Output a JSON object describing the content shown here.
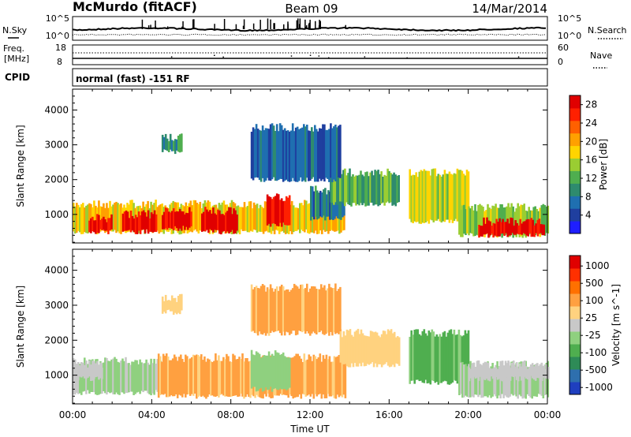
{
  "header": {
    "station": "McMurdo (fitACF)",
    "beam": "Beam 09",
    "date": "14/Mar/2014"
  },
  "labels": {
    "nsky": "N.Sky",
    "nsearch": "N.Search",
    "freq_line1": "Freq.",
    "freq_line2": "[MHz]",
    "nave": "Nave",
    "cpid": "CPID",
    "cpid_value": "normal (fast) -151 RF",
    "noise_ticks_left": [
      "10^5",
      "10^0"
    ],
    "noise_ticks_right": [
      "10^5",
      "10^0"
    ],
    "freq_ticks": [
      "18",
      "8"
    ],
    "nave_ticks": [
      "60",
      "0"
    ]
  },
  "chart_data": [
    {
      "type": "heatmap",
      "title": "",
      "xlabel": "Time UT",
      "ylabel": "Slant Range [km]",
      "x_ticks": [
        "00:00",
        "04:00",
        "08:00",
        "12:00",
        "16:00",
        "20:00",
        "00:00"
      ],
      "xlim": [
        0,
        24
      ],
      "y_ticks": [
        1000,
        2000,
        3000,
        4000
      ],
      "ylim": [
        180,
        4600
      ],
      "colorbar": {
        "label": "Power [dB]",
        "ticks": [
          4,
          8,
          12,
          16,
          20,
          24,
          28
        ],
        "range": [
          0,
          30
        ],
        "colors": [
          "#1e1eff",
          "#1f3f9f",
          "#1f6fb0",
          "#2e8b6e",
          "#4fae4f",
          "#9acd32",
          "#ffd400",
          "#ffa000",
          "#ff6000",
          "#ff2000",
          "#e00000"
        ]
      },
      "bands": [
        {
          "from": 0.0,
          "to": 13.7,
          "range_lo": 500,
          "range_hi": 1300,
          "level": 18
        },
        {
          "from": 0.8,
          "to": 2.0,
          "range_lo": 500,
          "range_hi": 900,
          "level": 28
        },
        {
          "from": 2.5,
          "to": 4.2,
          "range_lo": 500,
          "range_hi": 1000,
          "level": 28
        },
        {
          "from": 4.5,
          "to": 6.0,
          "range_lo": 600,
          "range_hi": 1100,
          "level": 28
        },
        {
          "from": 6.5,
          "to": 8.3,
          "range_lo": 500,
          "range_hi": 1100,
          "level": 28
        },
        {
          "from": 9.8,
          "to": 11.0,
          "range_lo": 700,
          "range_hi": 1500,
          "level": 28
        },
        {
          "from": 12.0,
          "to": 13.7,
          "range_lo": 900,
          "range_hi": 1700,
          "level": 8
        },
        {
          "from": 13.0,
          "to": 16.5,
          "range_lo": 1300,
          "range_hi": 2200,
          "level": 12
        },
        {
          "from": 17.0,
          "to": 20.0,
          "range_lo": 800,
          "range_hi": 2200,
          "level": 16
        },
        {
          "from": 19.5,
          "to": 24.0,
          "range_lo": 400,
          "range_hi": 1200,
          "level": 14
        },
        {
          "from": 20.5,
          "to": 23.8,
          "range_lo": 400,
          "range_hi": 800,
          "level": 28
        },
        {
          "from": 9.0,
          "to": 13.5,
          "range_lo": 2000,
          "range_hi": 3500,
          "level": 6
        },
        {
          "from": 4.5,
          "to": 5.5,
          "range_lo": 2800,
          "range_hi": 3200,
          "level": 10
        }
      ]
    },
    {
      "type": "heatmap",
      "title": "",
      "xlabel": "Time UT",
      "ylabel": "Slant Range [km]",
      "x_ticks": [
        "00:00",
        "04:00",
        "08:00",
        "12:00",
        "16:00",
        "20:00",
        "00:00"
      ],
      "xlim": [
        0,
        24
      ],
      "y_ticks": [
        1000,
        2000,
        3000,
        4000
      ],
      "ylim": [
        180,
        4600
      ],
      "colorbar": {
        "label": "Velocity [m s^-1]",
        "ticks": [
          "1000",
          "500",
          "100",
          "25",
          "-25",
          "-100",
          "-500",
          "-1000"
        ],
        "range": [
          -1000,
          1000
        ],
        "colors": [
          "#1f3fbf",
          "#2e6fae",
          "#2e8b57",
          "#4fae4f",
          "#8fd07f",
          "#c8c8c8",
          "#ffd27f",
          "#ffa040",
          "#ff7000",
          "#ff3000",
          "#e00000"
        ]
      },
      "bands": [
        {
          "from": 0.0,
          "to": 4.5,
          "range_lo": 500,
          "range_hi": 1400,
          "level": -100
        },
        {
          "from": 0.0,
          "to": 1.5,
          "range_lo": 900,
          "range_hi": 1300,
          "level": 25
        },
        {
          "from": 4.3,
          "to": 13.8,
          "range_lo": 400,
          "range_hi": 1500,
          "level": 300
        },
        {
          "from": 9.0,
          "to": 11.0,
          "range_lo": 600,
          "range_hi": 1600,
          "level": -200
        },
        {
          "from": 13.5,
          "to": 16.5,
          "range_lo": 1300,
          "range_hi": 2200,
          "level": 150
        },
        {
          "from": 17.0,
          "to": 20.0,
          "range_lo": 800,
          "range_hi": 2200,
          "level": -300
        },
        {
          "from": 19.5,
          "to": 24.0,
          "range_lo": 400,
          "range_hi": 1300,
          "level": -100
        },
        {
          "from": 20.0,
          "to": 24.0,
          "range_lo": 900,
          "range_hi": 1300,
          "level": 25
        },
        {
          "from": 9.0,
          "to": 13.5,
          "range_lo": 2200,
          "range_hi": 3500,
          "level": 300
        },
        {
          "from": 4.5,
          "to": 5.5,
          "range_lo": 2800,
          "range_hi": 3200,
          "level": 150
        }
      ]
    }
  ]
}
